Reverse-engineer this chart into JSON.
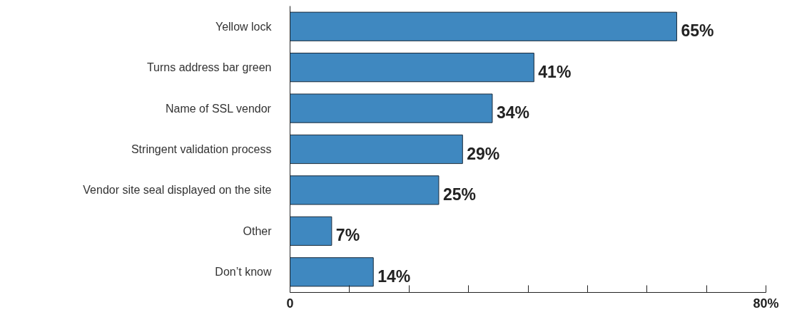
{
  "chart_data": {
    "type": "bar",
    "orientation": "horizontal",
    "categories": [
      "Yellow lock",
      "Turns address bar green",
      "Name of SSL vendor",
      "Stringent validation process",
      "Vendor site seal displayed on the site",
      "Other",
      "Don’t know"
    ],
    "values": [
      65,
      41,
      34,
      29,
      25,
      7,
      14
    ],
    "value_labels": [
      "65%",
      "41%",
      "34%",
      "29%",
      "25%",
      "7%",
      "14%"
    ],
    "color": "#3f88c0",
    "xlim": [
      0,
      80
    ],
    "xticks": [
      {
        "value": 0,
        "label": "0"
      },
      {
        "value": 10,
        "label": null
      },
      {
        "value": 20,
        "label": null
      },
      {
        "value": 30,
        "label": null
      },
      {
        "value": 40,
        "label": null
      },
      {
        "value": 50,
        "label": null
      },
      {
        "value": 60,
        "label": null
      },
      {
        "value": 70,
        "label": null
      },
      {
        "value": 80,
        "label": "80%"
      }
    ],
    "grid": false
  }
}
